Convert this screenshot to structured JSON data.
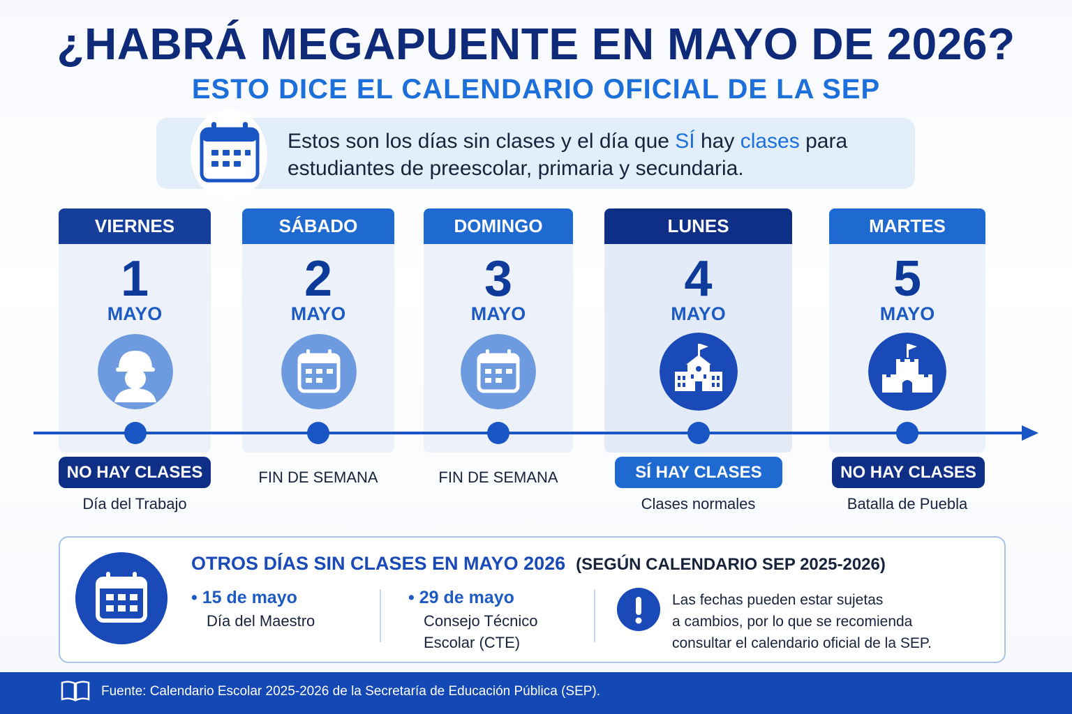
{
  "header": {
    "title": "¿HABRÁ MEGAPUENTE EN MAYO DE 2026?",
    "subtitle": "ESTO DICE EL CALENDARIO OFICIAL DE LA SEP"
  },
  "intro": {
    "icon": "calendar-icon",
    "text_part1": "Estos son los días sin clases y el día que ",
    "highlight1": "SÍ",
    "text_part2": " hay ",
    "highlight2": "clases",
    "text_part3": " para",
    "text_line2": "estudiantes de preescolar, primaria y secundaria."
  },
  "days": [
    {
      "weekday": "VIERNES",
      "number": "1",
      "month": "MAYO",
      "icon": "worker-icon",
      "status": "NO HAY CLASES",
      "caption": "Día del Trabajo",
      "header_color": "#163f9c"
    },
    {
      "weekday": "SÁBADO",
      "number": "2",
      "month": "MAYO",
      "icon": "calendar-icon",
      "status": "FIN DE SEMANA",
      "caption": "",
      "header_color": "#1e6ad0"
    },
    {
      "weekday": "DOMINGO",
      "number": "3",
      "month": "MAYO",
      "icon": "calendar-icon",
      "status": "FIN DE SEMANA",
      "caption": "",
      "header_color": "#1e6ad0"
    },
    {
      "weekday": "LUNES",
      "number": "4",
      "month": "MAYO",
      "icon": "school-icon",
      "status": "SÍ HAY CLASES",
      "caption": "Clases normales",
      "header_color": "#0f2f86"
    },
    {
      "weekday": "MARTES",
      "number": "5",
      "month": "MAYO",
      "icon": "castle-icon",
      "status": "NO HAY CLASES",
      "caption": "Batalla de Puebla",
      "header_color": "#1e6ad0"
    }
  ],
  "others": {
    "title": "OTROS DÍAS SIN CLASES EN MAYO 2026",
    "title_note": "(SEGÚN CALENDARIO SEP 2025-2026)",
    "items": [
      {
        "date": "15 de mayo",
        "desc_line1": "Día del Maestro",
        "desc_line2": ""
      },
      {
        "date": "29 de mayo",
        "desc_line1": "Consejo Técnico",
        "desc_line2": "Escolar (CTE)"
      }
    ],
    "note_line1": "Las fechas pueden estar sujetas",
    "note_line2": "a cambios, por lo que se recomienda",
    "note_line3": "consultar el calendario oficial de la SEP."
  },
  "footer": {
    "icon": "book-icon",
    "text": "Fuente: Calendario Escolar 2025-2026 de la Secretaría de Educación Pública (SEP)."
  },
  "colors": {
    "primary_dark": "#0e2a78",
    "primary": "#1a49b8",
    "accent": "#1d6fd9",
    "card_bg": "#edf2fa"
  }
}
